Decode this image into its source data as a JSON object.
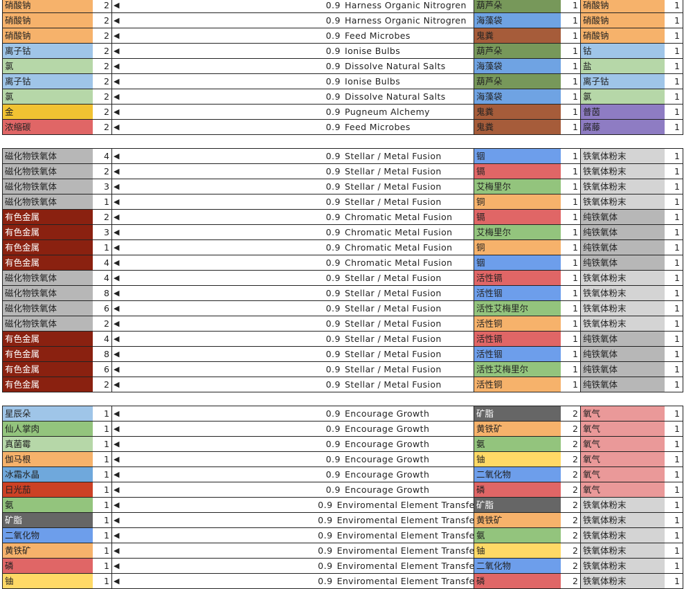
{
  "colors": {
    "硝酸钠": "#f6b26b",
    "离子钴": "#9fc5e8",
    "氯": "#b6d7a8",
    "金": "#f1c232",
    "浓缩碳": "#e06666",
    "葫芦朵": "#77985a",
    "海藻袋": "#6fa3e3",
    "鬼粪": "#a65c3a",
    "钴": "#9fc5e8",
    "盐": "#b6d7a8",
    "普茵": "#8e7cc3",
    "腐藤": "#8e7cc3",
    "磁化物铁氧体": "#b7b7b7",
    "有色金属": "#8a2110",
    "铟": "#6d9eeb",
    "镉": "#e06666",
    "艾梅里尔": "#93c47d",
    "铜": "#f6b26b",
    "活性镉": "#e06666",
    "活性铟": "#6d9eeb",
    "活性艾梅里尔": "#93c47d",
    "活性铜": "#f6b26b",
    "铁氧体粉末": "#d4d4d4",
    "纯铁氧体": "#b7b7b7",
    "星辰朵": "#9fc5e8",
    "仙人掌肉": "#93c47d",
    "真菌霉": "#b6d7a8",
    "伽马根": "#f6b26b",
    "冰霜水晶": "#6fa8dc",
    "日光茄": "#cc4125",
    "氨": "#93c47d",
    "矿脂": "#666666",
    "二氧化物": "#6d9eeb",
    "黄铁矿": "#f6b26b",
    "磷": "#e06666",
    "铀": "#ffd966",
    "氧气": "#ea9999"
  },
  "light_text": [
    "有色金属",
    "矿脂"
  ],
  "arrow_icon": "◀",
  "sections": [
    {
      "rows": [
        [
          "硝酸钠",
          "2",
          "0.9",
          "Harness Organic Nitrogren",
          "葫芦朵",
          "1",
          "硝酸钠",
          "1"
        ],
        [
          "硝酸钠",
          "2",
          "0.9",
          "Harness Organic Nitrogren",
          "海藻袋",
          "1",
          "硝酸钠",
          "1"
        ],
        [
          "硝酸钠",
          "2",
          "0.9",
          "Feed Microbes",
          "鬼粪",
          "1",
          "硝酸钠",
          "1"
        ],
        [
          "离子钴",
          "2",
          "0.9",
          "Ionise Bulbs",
          "葫芦朵",
          "1",
          "钴",
          "1"
        ],
        [
          "氯",
          "2",
          "0.9",
          "Dissolve Natural Salts",
          "海藻袋",
          "1",
          "盐",
          "1"
        ],
        [
          "离子钴",
          "2",
          "0.9",
          "Ionise Bulbs",
          "葫芦朵",
          "1",
          "离子钴",
          "1"
        ],
        [
          "氯",
          "2",
          "0.9",
          "Dissolve Natural Salts",
          "海藻袋",
          "1",
          "氯",
          "1"
        ],
        [
          "金",
          "2",
          "0.9",
          "Pugneum Alchemy",
          "鬼粪",
          "1",
          "普茵",
          "1"
        ],
        [
          "浓缩碳",
          "2",
          "0.9",
          "Feed Microbes",
          "鬼粪",
          "1",
          "腐藤",
          "1"
        ]
      ]
    },
    {
      "rows": [
        [
          "磁化物铁氧体",
          "4",
          "0.9",
          "Stellar / Metal Fusion",
          "铟",
          "1",
          "铁氧体粉末",
          "1"
        ],
        [
          "磁化物铁氧体",
          "2",
          "0.9",
          "Stellar / Metal Fusion",
          "镉",
          "1",
          "铁氧体粉末",
          "1"
        ],
        [
          "磁化物铁氧体",
          "3",
          "0.9",
          "Stellar / Metal Fusion",
          "艾梅里尔",
          "1",
          "铁氧体粉末",
          "1"
        ],
        [
          "磁化物铁氧体",
          "1",
          "0.9",
          "Stellar / Metal Fusion",
          "铜",
          "1",
          "铁氧体粉末",
          "1"
        ],
        [
          "有色金属",
          "2",
          "0.9",
          "Chromatic Metal Fusion",
          "镉",
          "1",
          "纯铁氧体",
          "1"
        ],
        [
          "有色金属",
          "3",
          "0.9",
          "Chromatic Metal Fusion",
          "艾梅里尔",
          "1",
          "纯铁氧体",
          "1"
        ],
        [
          "有色金属",
          "1",
          "0.9",
          "Chromatic Metal Fusion",
          "铜",
          "1",
          "纯铁氧体",
          "1"
        ],
        [
          "有色金属",
          "4",
          "0.9",
          "Chromatic Metal Fusion",
          "铟",
          "1",
          "纯铁氧体",
          "1"
        ],
        [
          "磁化物铁氧体",
          "4",
          "0.9",
          "Stellar / Metal Fusion",
          "活性镉",
          "1",
          "铁氧体粉末",
          "1"
        ],
        [
          "磁化物铁氧体",
          "8",
          "0.9",
          "Stellar / Metal Fusion",
          "活性铟",
          "1",
          "铁氧体粉末",
          "1"
        ],
        [
          "磁化物铁氧体",
          "6",
          "0.9",
          "Stellar / Metal Fusion",
          "活性艾梅里尔",
          "1",
          "铁氧体粉末",
          "1"
        ],
        [
          "磁化物铁氧体",
          "2",
          "0.9",
          "Stellar / Metal Fusion",
          "活性铜",
          "1",
          "铁氧体粉末",
          "1"
        ],
        [
          "有色金属",
          "4",
          "0.9",
          "Stellar / Metal Fusion",
          "活性镉",
          "1",
          "纯铁氧体",
          "1"
        ],
        [
          "有色金属",
          "8",
          "0.9",
          "Stellar / Metal Fusion",
          "活性铟",
          "1",
          "纯铁氧体",
          "1"
        ],
        [
          "有色金属",
          "6",
          "0.9",
          "Stellar / Metal Fusion",
          "活性艾梅里尔",
          "1",
          "纯铁氧体",
          "1"
        ],
        [
          "有色金属",
          "2",
          "0.9",
          "Stellar / Metal Fusion",
          "活性铜",
          "1",
          "纯铁氧体",
          "1"
        ]
      ]
    },
    {
      "rows": [
        [
          "星辰朵",
          "1",
          "0.9",
          "Encourage Growth",
          "矿脂",
          "2",
          "氧气",
          "1"
        ],
        [
          "仙人掌肉",
          "1",
          "0.9",
          "Encourage Growth",
          "黄铁矿",
          "2",
          "氧气",
          "1"
        ],
        [
          "真菌霉",
          "1",
          "0.9",
          "Encourage Growth",
          "氨",
          "2",
          "氧气",
          "1"
        ],
        [
          "伽马根",
          "1",
          "0.9",
          "Encourage Growth",
          "铀",
          "2",
          "氧气",
          "1"
        ],
        [
          "冰霜水晶",
          "1",
          "0.9",
          "Encourage Growth",
          "二氧化物",
          "2",
          "氧气",
          "1"
        ],
        [
          "日光茄",
          "1",
          "0.9",
          "Encourage Growth",
          "磷",
          "2",
          "氧气",
          "1"
        ],
        [
          "氨",
          "1",
          "0.9",
          "Enviromental Element Transfer",
          "矿脂",
          "2",
          "铁氧体粉末",
          "1"
        ],
        [
          "矿脂",
          "1",
          "0.9",
          "Enviromental Element Transfer",
          "黄铁矿",
          "2",
          "铁氧体粉末",
          "1"
        ],
        [
          "二氧化物",
          "1",
          "0.9",
          "Enviromental Element Transfer",
          "氨",
          "2",
          "铁氧体粉末",
          "1"
        ],
        [
          "黄铁矿",
          "1",
          "0.9",
          "Enviromental Element Transfer",
          "铀",
          "2",
          "铁氧体粉末",
          "1"
        ],
        [
          "磷",
          "1",
          "0.9",
          "Enviromental Element Transfer",
          "二氧化物",
          "2",
          "铁氧体粉末",
          "1"
        ],
        [
          "铀",
          "1",
          "0.9",
          "Enviromental Element Transfer",
          "磷",
          "2",
          "铁氧体粉末",
          "1"
        ]
      ]
    }
  ]
}
